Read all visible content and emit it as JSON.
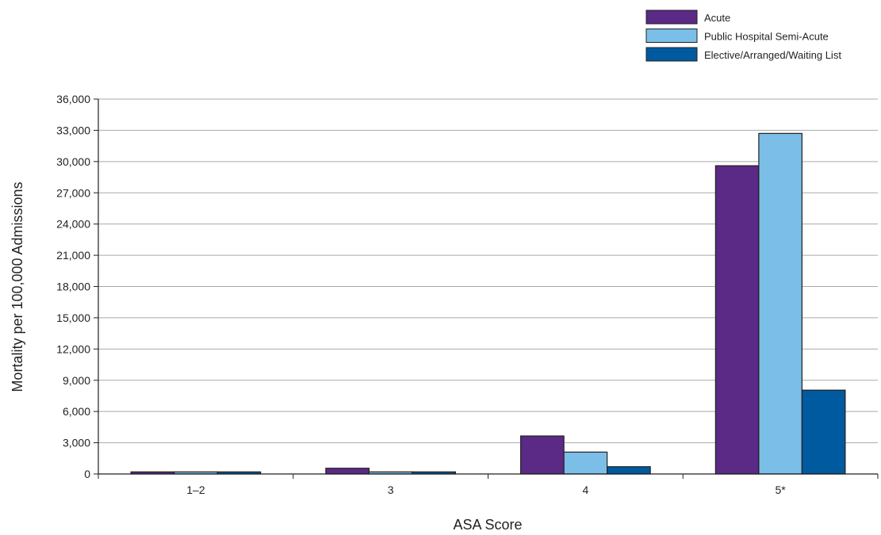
{
  "chart_data": {
    "type": "bar",
    "title": "",
    "xlabel": "ASA Score",
    "ylabel": "Mortality per 100,000 Admissions",
    "categories": [
      "1–2",
      "3",
      "4",
      "5*"
    ],
    "ylim": [
      0,
      36000
    ],
    "yticks": [
      0,
      3000,
      6000,
      9000,
      12000,
      15000,
      18000,
      21000,
      24000,
      27000,
      30000,
      33000,
      36000
    ],
    "ytick_labels": [
      "0",
      "3,000",
      "6,000",
      "9,000",
      "12,000",
      "15,000",
      "18,000",
      "21,000",
      "24,000",
      "27,000",
      "30,000",
      "33,000",
      "36,000"
    ],
    "series": [
      {
        "name": "Acute",
        "color": "#5a2a86",
        "values": [
          200,
          550,
          3650,
          29600
        ]
      },
      {
        "name": "Public Hospital Semi-Acute",
        "color": "#7bbfe8",
        "values": [
          200,
          200,
          2100,
          32700
        ]
      },
      {
        "name": "Elective/Arranged/Waiting List",
        "color": "#005aa0",
        "values": [
          200,
          200,
          700,
          8050
        ]
      }
    ],
    "grid": true,
    "legend_position": "top-right"
  }
}
